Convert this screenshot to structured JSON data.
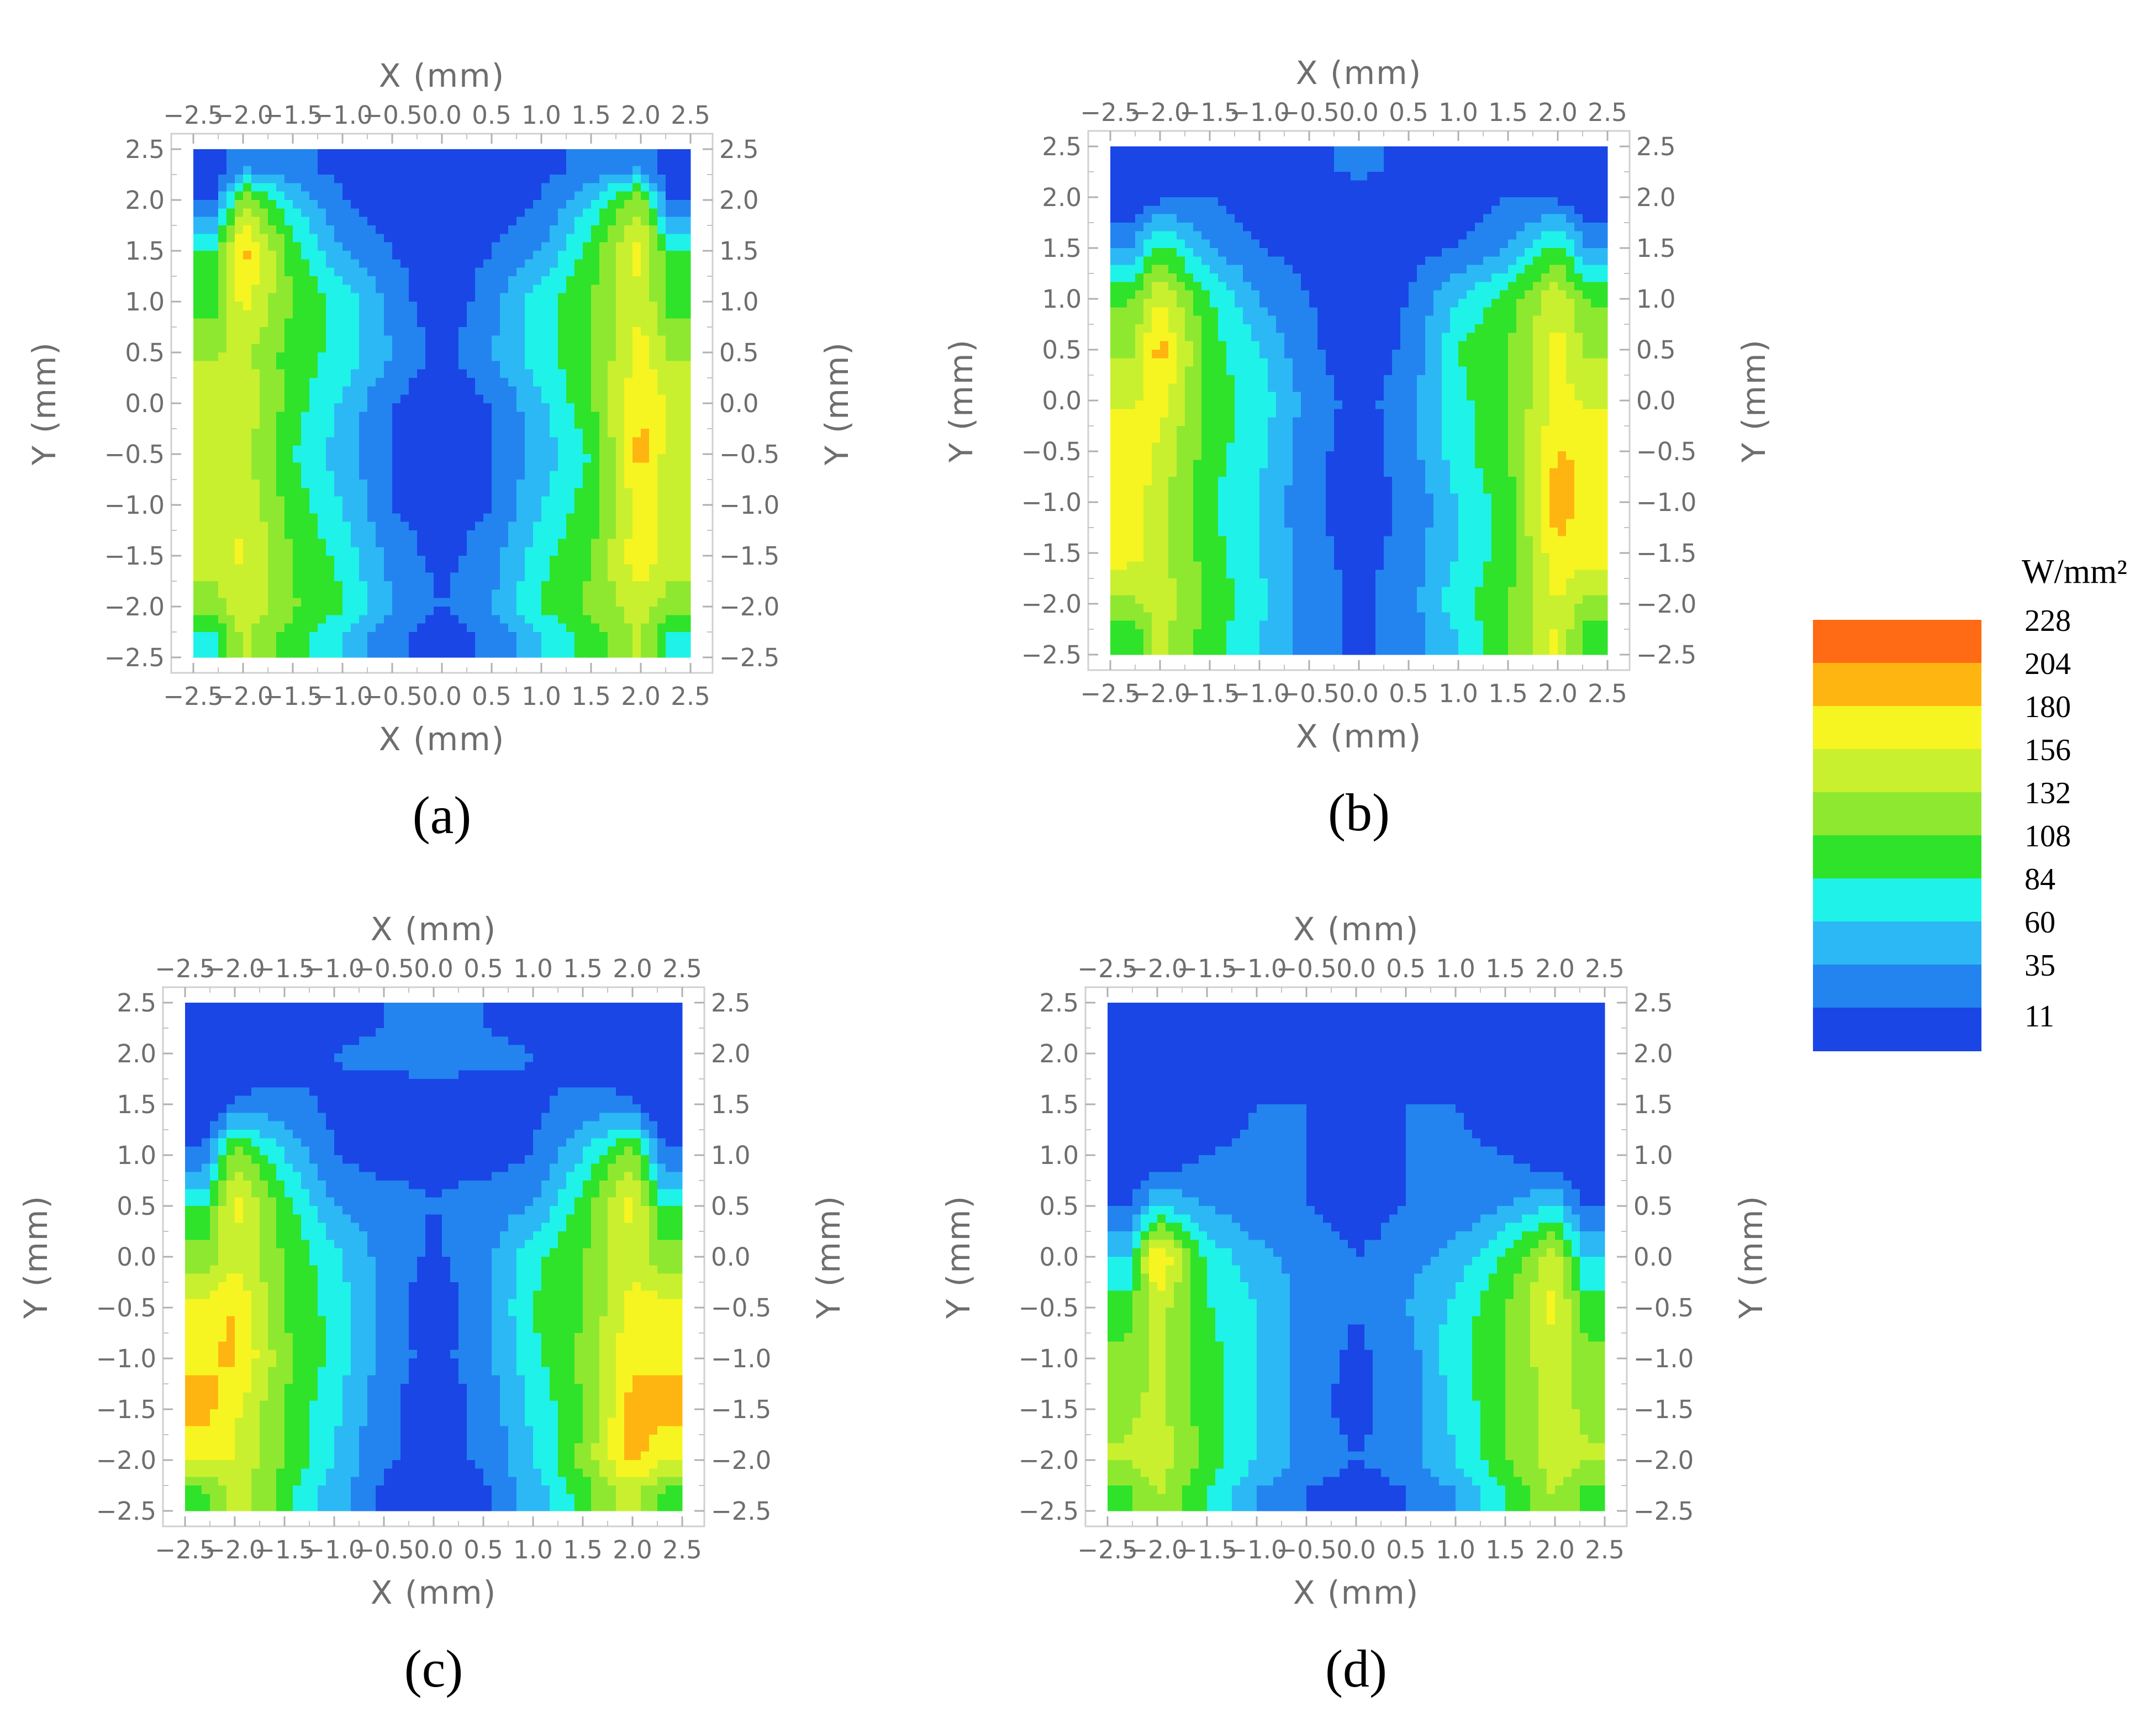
{
  "chart_data": [
    {
      "type": "heatmap",
      "panel_label": "(a)",
      "xlabel": "X (mm)",
      "ylabel": "Y (mm)",
      "xlim": [
        -2.5,
        2.5
      ],
      "ylim": [
        -2.5,
        2.5
      ],
      "x_ticks": [
        "−2.5",
        "−2.0",
        "−1.5",
        "−1.0",
        "−0.5",
        "0.0",
        "0.5",
        "1.0",
        "1.5",
        "2.0",
        "2.5"
      ],
      "y_ticks": [
        "2.5",
        "2.0",
        "1.5",
        "1.0",
        "0.5",
        "0.0",
        "−0.5",
        "−1.0",
        "−1.5",
        "−2.0",
        "−2.5"
      ],
      "x": [
        -2.3,
        -2.0,
        -1.5,
        -1.0,
        -0.5,
        0.0,
        0.5,
        1.0,
        1.5,
        2.0,
        2.3
      ],
      "y": [
        2.3,
        2.0,
        1.5,
        1.0,
        0.5,
        0.0,
        -0.5,
        -1.0,
        -1.5,
        -2.0,
        -2.3
      ],
      "z": [
        [
          11,
          60,
          40,
          30,
          20,
          15,
          20,
          30,
          40,
          60,
          11
        ],
        [
          30,
          150,
          84,
          35,
          20,
          25,
          20,
          35,
          84,
          150,
          30
        ],
        [
          108,
          215,
          120,
          60,
          35,
          20,
          35,
          60,
          120,
          190,
          108
        ],
        [
          120,
          190,
          130,
          100,
          50,
          15,
          50,
          100,
          130,
          180,
          120
        ],
        [
          150,
          165,
          120,
          100,
          60,
          25,
          60,
          100,
          130,
          190,
          150
        ],
        [
          175,
          175,
          120,
          80,
          35,
          15,
          35,
          80,
          130,
          205,
          175
        ],
        [
          165,
          165,
          110,
          70,
          35,
          20,
          35,
          70,
          110,
          215,
          165
        ],
        [
          160,
          175,
          120,
          84,
          35,
          20,
          35,
          84,
          120,
          195,
          160
        ],
        [
          170,
          185,
          130,
          100,
          50,
          25,
          50,
          100,
          130,
          200,
          170
        ],
        [
          140,
          175,
          135,
          110,
          60,
          35,
          60,
          110,
          140,
          170,
          140
        ],
        [
          100,
          160,
          120,
          84,
          40,
          20,
          40,
          84,
          120,
          160,
          100
        ]
      ]
    },
    {
      "type": "heatmap",
      "panel_label": "(b)",
      "xlabel": "X (mm)",
      "ylabel": "Y (mm)",
      "xlim": [
        -2.5,
        2.5
      ],
      "ylim": [
        -2.5,
        2.5
      ],
      "x_ticks": [
        "−2.5",
        "−2.0",
        "−1.5",
        "−1.0",
        "−0.5",
        "0.0",
        "0.5",
        "1.0",
        "1.5",
        "2.0",
        "2.5"
      ],
      "y_ticks": [
        "2.5",
        "2.0",
        "1.5",
        "1.0",
        "0.5",
        "0.0",
        "−0.5",
        "−1.0",
        "−1.5",
        "−2.0",
        "−2.5"
      ],
      "x": [
        -2.3,
        -2.0,
        -1.5,
        -1.0,
        -0.5,
        0.0,
        0.5,
        1.0,
        1.5,
        2.0,
        2.3
      ],
      "y": [
        2.3,
        2.0,
        1.5,
        1.0,
        0.5,
        0.0,
        -0.5,
        -1.0,
        -1.5,
        -2.0,
        -2.3
      ],
      "z": [
        [
          11,
          11,
          20,
          30,
          30,
          40,
          30,
          30,
          20,
          11,
          11
        ],
        [
          11,
          30,
          35,
          20,
          25,
          30,
          25,
          20,
          35,
          30,
          11
        ],
        [
          60,
          120,
          60,
          35,
          25,
          20,
          25,
          35,
          60,
          120,
          60
        ],
        [
          130,
          180,
          110,
          60,
          35,
          25,
          35,
          84,
          120,
          175,
          130
        ],
        [
          150,
          215,
          120,
          84,
          40,
          20,
          40,
          110,
          130,
          190,
          150
        ],
        [
          175,
          190,
          120,
          100,
          50,
          25,
          50,
          100,
          130,
          190,
          175
        ],
        [
          200,
          175,
          120,
          90,
          45,
          20,
          50,
          100,
          130,
          205,
          200
        ],
        [
          195,
          165,
          110,
          84,
          40,
          20,
          40,
          84,
          120,
          220,
          195
        ],
        [
          190,
          165,
          120,
          84,
          45,
          25,
          45,
          84,
          120,
          200,
          190
        ],
        [
          150,
          170,
          125,
          90,
          50,
          30,
          50,
          100,
          130,
          180,
          150
        ],
        [
          110,
          165,
          120,
          84,
          45,
          30,
          45,
          84,
          130,
          185,
          110
        ]
      ]
    },
    {
      "type": "heatmap",
      "panel_label": "(c)",
      "xlabel": "X (mm)",
      "ylabel": "Y (mm)",
      "xlim": [
        -2.5,
        2.5
      ],
      "ylim": [
        -2.5,
        2.5
      ],
      "x_ticks": [
        "−2.5",
        "−2.0",
        "−1.5",
        "−1.0",
        "−0.5",
        "0.0",
        "0.5",
        "1.0",
        "1.5",
        "2.0",
        "2.5"
      ],
      "y_ticks": [
        "2.5",
        "2.0",
        "1.5",
        "1.0",
        "0.5",
        "0.0",
        "−0.5",
        "−1.0",
        "−1.5",
        "−2.0",
        "−2.5"
      ],
      "x": [
        -2.3,
        -2.0,
        -1.5,
        -1.0,
        -0.5,
        0.0,
        0.5,
        1.0,
        1.5,
        2.0,
        2.3
      ],
      "y": [
        2.3,
        2.0,
        1.5,
        1.0,
        0.5,
        0.0,
        -0.5,
        -1.0,
        -1.5,
        -2.0,
        -2.3
      ],
      "z": [
        [
          11,
          11,
          11,
          20,
          35,
          40,
          35,
          20,
          11,
          11,
          11
        ],
        [
          11,
          11,
          20,
          35,
          45,
          50,
          45,
          35,
          20,
          11,
          11
        ],
        [
          11,
          40,
          45,
          30,
          20,
          15,
          20,
          30,
          45,
          40,
          11
        ],
        [
          40,
          150,
          84,
          35,
          25,
          30,
          25,
          35,
          84,
          150,
          40
        ],
        [
          110,
          190,
          120,
          60,
          45,
          35,
          45,
          60,
          120,
          190,
          110
        ],
        [
          140,
          175,
          130,
          90,
          50,
          30,
          50,
          100,
          130,
          175,
          140
        ],
        [
          190,
          205,
          130,
          100,
          50,
          20,
          50,
          110,
          130,
          190,
          190
        ],
        [
          200,
          210,
          140,
          100,
          50,
          25,
          50,
          100,
          140,
          200,
          200
        ],
        [
          215,
          185,
          130,
          90,
          40,
          20,
          40,
          90,
          130,
          215,
          215
        ],
        [
          180,
          180,
          130,
          84,
          40,
          20,
          40,
          84,
          140,
          215,
          180
        ],
        [
          130,
          170,
          120,
          70,
          30,
          15,
          30,
          70,
          120,
          170,
          130
        ]
      ]
    },
    {
      "type": "heatmap",
      "panel_label": "(d)",
      "xlabel": "X (mm)",
      "ylabel": "Y (mm)",
      "xlim": [
        -2.5,
        2.5
      ],
      "ylim": [
        -2.5,
        2.5
      ],
      "x_ticks": [
        "−2.5",
        "−2.0",
        "−1.5",
        "−1.0",
        "−0.5",
        "0.0",
        "0.5",
        "1.0",
        "1.5",
        "2.0",
        "2.5"
      ],
      "y_ticks": [
        "2.5",
        "2.0",
        "1.5",
        "1.0",
        "0.5",
        "0.0",
        "−0.5",
        "−1.0",
        "−1.5",
        "−2.0",
        "−2.5"
      ],
      "x": [
        -2.3,
        -2.0,
        -1.5,
        -1.0,
        -0.5,
        0.0,
        0.5,
        1.0,
        1.5,
        2.0,
        2.3
      ],
      "y": [
        2.3,
        2.0,
        1.5,
        1.0,
        0.5,
        0.0,
        -0.5,
        -1.0,
        -1.5,
        -2.0,
        -2.3
      ],
      "z": [
        [
          11,
          11,
          11,
          11,
          20,
          11,
          20,
          11,
          11,
          11,
          11
        ],
        [
          11,
          11,
          11,
          20,
          30,
          35,
          30,
          20,
          11,
          11,
          11
        ],
        [
          11,
          11,
          20,
          35,
          35,
          30,
          35,
          35,
          20,
          11,
          11
        ],
        [
          11,
          11,
          35,
          40,
          35,
          30,
          35,
          40,
          35,
          11,
          11
        ],
        [
          35,
          84,
          60,
          40,
          35,
          20,
          35,
          40,
          60,
          84,
          35
        ],
        [
          84,
          215,
          100,
          70,
          50,
          35,
          50,
          70,
          110,
          175,
          84
        ],
        [
          120,
          170,
          110,
          84,
          50,
          35,
          60,
          90,
          130,
          190,
          120
        ],
        [
          140,
          160,
          120,
          84,
          45,
          30,
          45,
          100,
          130,
          175,
          140
        ],
        [
          150,
          165,
          120,
          84,
          45,
          25,
          50,
          90,
          130,
          170,
          150
        ],
        [
          160,
          175,
          120,
          84,
          50,
          35,
          50,
          84,
          130,
          170,
          160
        ],
        [
          120,
          160,
          110,
          60,
          35,
          20,
          35,
          60,
          110,
          160,
          120
        ]
      ]
    }
  ],
  "legend": {
    "unit": "W/mm²",
    "levels": [
      "228",
      "204",
      "180",
      "156",
      "132",
      "108",
      "84",
      "60",
      "35",
      "11"
    ],
    "colors": [
      "#ff6a14",
      "#ffb511",
      "#f7f521",
      "#c9f02f",
      "#8fe830",
      "#2ee32a",
      "#1ff2e8",
      "#2cb8f5",
      "#2384f0",
      "#1a46e6"
    ]
  }
}
